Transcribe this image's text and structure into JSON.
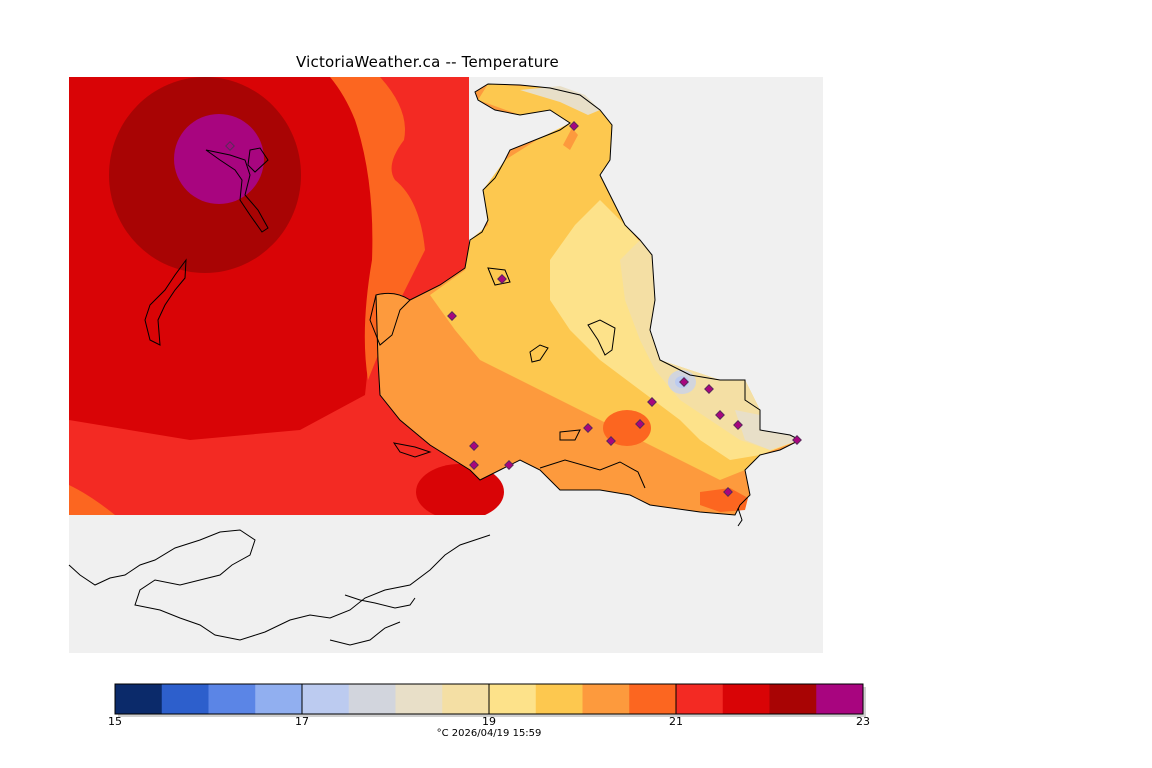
{
  "title": "VictoriaWeather.ca -- Temperature",
  "legend": {
    "colors": [
      "#0b2a6a",
      "#2d5fcc",
      "#5b85e6",
      "#91aff0",
      "#bccbf0",
      "#d2d5dd",
      "#e8dfc8",
      "#f4dfa4",
      "#fde28a",
      "#fdc84f",
      "#fd9a3d",
      "#fc6620",
      "#f32a23",
      "#d90406",
      "#a80404",
      "#a8057f"
    ],
    "tick_labels": [
      "15",
      "17",
      "19",
      "21",
      "23"
    ],
    "caption": "°C  2026/04/19 15:59"
  },
  "scale": {
    "min": 15,
    "max": 23,
    "unit": "°C"
  },
  "timestamp": "2026/04/19 15:59"
}
